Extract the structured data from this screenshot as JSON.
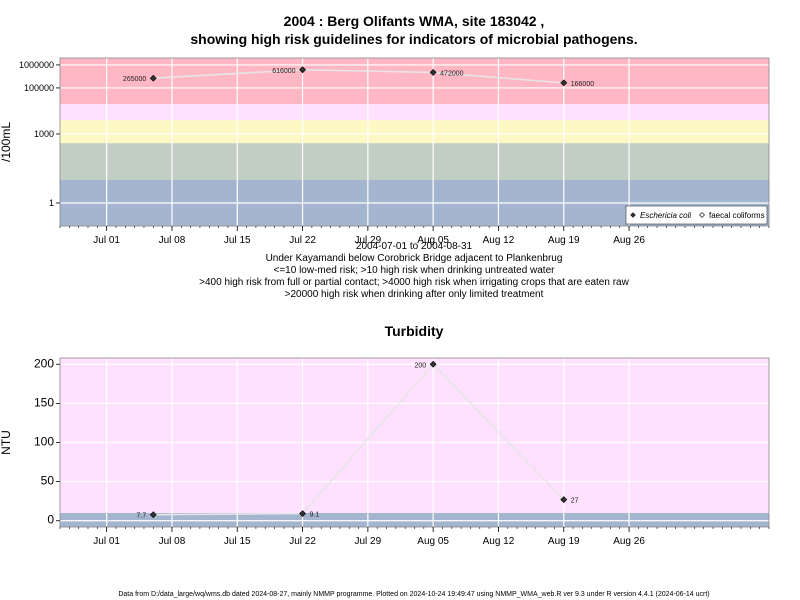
{
  "chart_data": [
    {
      "type": "scatter",
      "title_line1": "2004 : Berg Olifants WMA, site 183042 ,",
      "title_line2": "showing high risk guidelines for indicators of microbial pathogens.",
      "ylabel": "/100mL",
      "yscale": "log",
      "ylim": [
        0.1,
        2000000
      ],
      "y_ticks": [
        1,
        1000,
        100000,
        1000000
      ],
      "y_tick_labels": [
        "1",
        "1000",
        "100000",
        "1000000"
      ],
      "x_range": [
        "2004-06-26",
        "2004-09-10"
      ],
      "x_ticks": [
        "2004-07-01",
        "2004-07-08",
        "2004-07-15",
        "2004-07-22",
        "2004-07-29",
        "2004-08-05",
        "2004-08-12",
        "2004-08-19",
        "2004-08-26"
      ],
      "x_tick_labels": [
        "Jul 01",
        "Jul 08",
        "Jul 15",
        "Jul 22",
        "Jul 29",
        "Aug 05",
        "Aug 12",
        "Aug 19",
        "Aug 26"
      ],
      "grid": true,
      "bands": [
        {
          "from": 0.1,
          "to": 10,
          "color": "#a3b5cf"
        },
        {
          "from": 10,
          "to": 400,
          "color": "#c2cdc4"
        },
        {
          "from": 400,
          "to": 4000,
          "color": "#fef8c5"
        },
        {
          "from": 4000,
          "to": 20000,
          "color": "#ffe0ff"
        },
        {
          "from": 20000,
          "to": 2000000,
          "color": "#ffb7c4"
        }
      ],
      "series": [
        {
          "name": "Eschericia coli",
          "marker": "filled-diamond",
          "x": [
            "2004-07-06",
            "2004-07-22",
            "2004-08-05",
            "2004-08-19"
          ],
          "y": [
            265000,
            616000,
            472000,
            166000
          ],
          "labels": [
            "265000",
            "616000",
            "472000",
            "166000"
          ]
        },
        {
          "name": "faecal coliforms",
          "marker": "open-diamond",
          "x": [],
          "y": []
        }
      ],
      "legend_position": "bottom-right",
      "subtitle_lines": [
        "2004-07-01 to 2004-08-31",
        "Under Kayamandi below Corobrick Bridge adjacent to Plankenbrug",
        "<=10 low-med risk; >10 high risk when drinking untreated water",
        ">400 high risk from full or partial contact; >4000 high risk when irrigating crops that are eaten raw",
        ">20000 high risk when drinking after only limited treatment"
      ]
    },
    {
      "type": "scatter",
      "title": "Turbidity",
      "ylabel": "NTU",
      "ylim": [
        -8,
        208
      ],
      "y_ticks": [
        0,
        50,
        100,
        150,
        200
      ],
      "y_tick_labels": [
        "0",
        "50",
        "100",
        "150",
        "200"
      ],
      "x_range": [
        "2004-06-26",
        "2004-09-10"
      ],
      "x_ticks": [
        "2004-07-01",
        "2004-07-08",
        "2004-07-15",
        "2004-07-22",
        "2004-07-29",
        "2004-08-05",
        "2004-08-12",
        "2004-08-19",
        "2004-08-26"
      ],
      "x_tick_labels": [
        "Jul 01",
        "Jul 08",
        "Jul 15",
        "Jul 22",
        "Jul 29",
        "Aug 05",
        "Aug 12",
        "Aug 19",
        "Aug 26"
      ],
      "grid": true,
      "bands": [
        {
          "from": -8,
          "to": 10,
          "color": "#a3b5cf"
        },
        {
          "from": 10,
          "to": 208,
          "color": "#ffe0ff"
        }
      ],
      "series": [
        {
          "name": "Turbidity",
          "marker": "filled-diamond",
          "x": [
            "2004-07-06",
            "2004-07-22",
            "2004-08-05",
            "2004-08-19"
          ],
          "y": [
            7.7,
            9.1,
            200,
            27
          ],
          "labels": [
            "7.7",
            "9.1",
            "200",
            "27"
          ]
        }
      ]
    }
  ],
  "footer": "Data from D:/data_large/wq/wms.db dated 2024-08-27, mainly NMMP programme. Plotted on 2024-10-24 19:49:47 using NMMP_WMA_web.R ver 9.3 under R version 4.4.1 (2024-06-14 ucrt)"
}
